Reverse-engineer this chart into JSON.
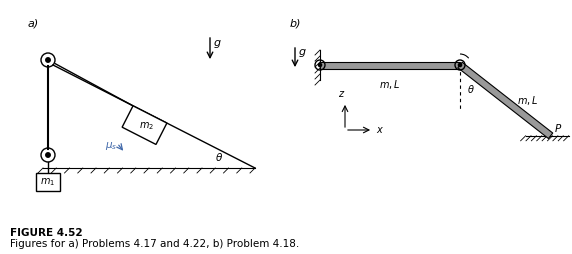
{
  "fig_width": 5.72,
  "fig_height": 2.54,
  "dpi": 100,
  "bg_color": "#ffffff",
  "black": "#000000",
  "blue": "#4169aa",
  "gray": "#666666",
  "label_a": "a)",
  "label_b": "b)",
  "figure_title": "FIGURE 4.52",
  "figure_caption": "Figures for a) Problems 4.17 and 4.22, b) Problem 4.18."
}
